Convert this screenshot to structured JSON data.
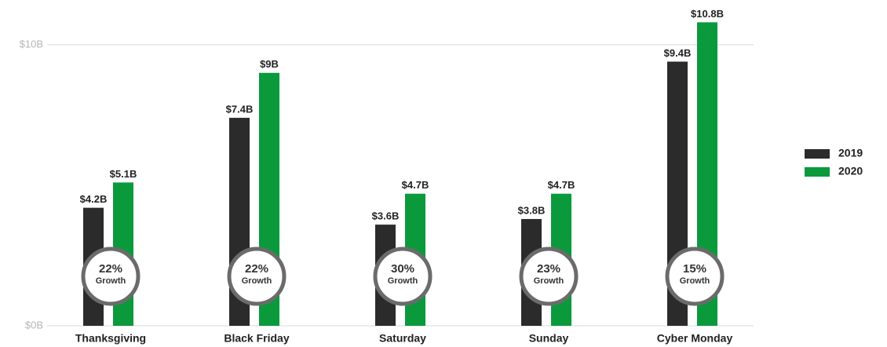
{
  "chart_data": {
    "type": "bar",
    "categories": [
      "Thanksgiving",
      "Black Friday",
      "Saturday",
      "Sunday",
      "Cyber Monday"
    ],
    "series": [
      {
        "name": "2019",
        "color": "#2b2b2b",
        "values": [
          4.2,
          7.4,
          3.6,
          3.8,
          9.4
        ],
        "value_labels": [
          "$4.2B",
          "$7.4B",
          "$3.6B",
          "$3.8B",
          "$9.4B"
        ]
      },
      {
        "name": "2020",
        "color": "#0a9a3c",
        "values": [
          5.1,
          9,
          4.7,
          4.7,
          10.8
        ],
        "value_labels": [
          "$5.1B",
          "$9B",
          "$4.7B",
          "$4.7B",
          "$10.8B"
        ]
      }
    ],
    "growth_labels": [
      "22%",
      "22%",
      "30%",
      "23%",
      "15%"
    ],
    "growth_caption": "Growth",
    "ylim": [
      0,
      10
    ],
    "yticks": [
      {
        "value": 0,
        "label": "$0B"
      },
      {
        "value": 10,
        "label": "$10B"
      }
    ],
    "grid": true,
    "legend": "right"
  }
}
